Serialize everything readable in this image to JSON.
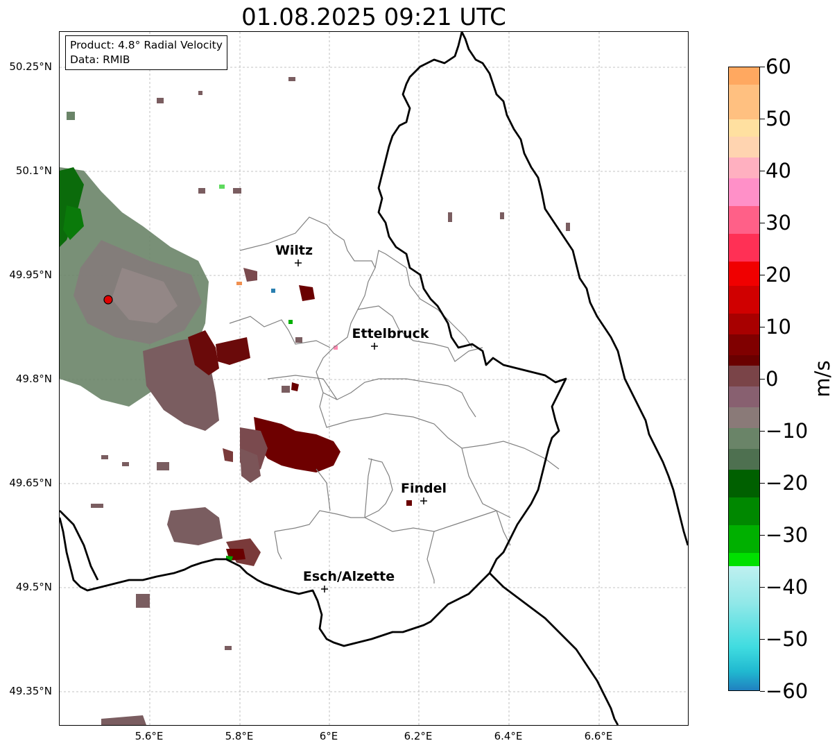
{
  "title": "01.08.2025 09:21 UTC",
  "info": {
    "product": "Product: 4.8° Radial Velocity",
    "data": "Data: RMIB"
  },
  "latitude_labels": [
    "50.25°N",
    "50.1°N",
    "49.95°N",
    "49.8°N",
    "49.65°N",
    "49.5°N",
    "49.35°N"
  ],
  "longitude_labels": [
    "5.6°E",
    "5.8°E",
    "6°E",
    "6.2°E",
    "6.4°E",
    "6.6°E"
  ],
  "cities": [
    "Wiltz",
    "Ettelbruck",
    "Findel",
    "Esch/Alzette"
  ],
  "colorbar": {
    "unit": "m/s",
    "ticks": [
      "60",
      "50",
      "40",
      "30",
      "20",
      "10",
      "0",
      "−10",
      "−20",
      "−30",
      "−40",
      "−50",
      "−60"
    ],
    "range": [
      -60,
      60
    ]
  },
  "colors": {
    "border": "#000000",
    "districts": "#808080",
    "grid": "#b0b0b0",
    "radar_site": "#e00000"
  }
}
